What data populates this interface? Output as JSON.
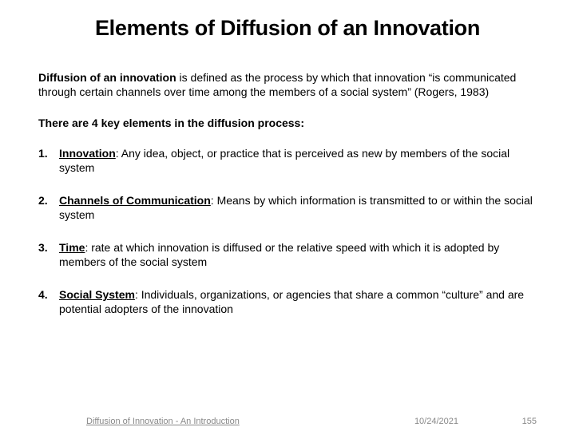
{
  "title": "Elements of Diffusion of an Innovation",
  "definition": {
    "term": "Diffusion of an innovation",
    "body": " is defined as the process by which that innovation “is communicated through certain channels over time among the members of a social system” (Rogers, 1983)"
  },
  "key_elements_intro": "There are 4 key elements in the diffusion process:",
  "elements": [
    {
      "name": "Innovation",
      "desc": ": Any idea, object, or practice that is perceived as new by members of the social system"
    },
    {
      "name": "Channels of Communication",
      "desc": ": Means by which information is transmitted to or within the social system"
    },
    {
      "name": "Time",
      "desc": ": rate at which innovation is diffused or the relative speed with which it is adopted by members of the social system"
    },
    {
      "name": "Social System",
      "desc": ": Individuals, organizations, or agencies that share a common “culture” and are potential adopters of the innovation"
    }
  ],
  "footer": {
    "left": "Diffusion of Innovation - An Introduction",
    "date": "10/24/2021",
    "page": "155"
  }
}
